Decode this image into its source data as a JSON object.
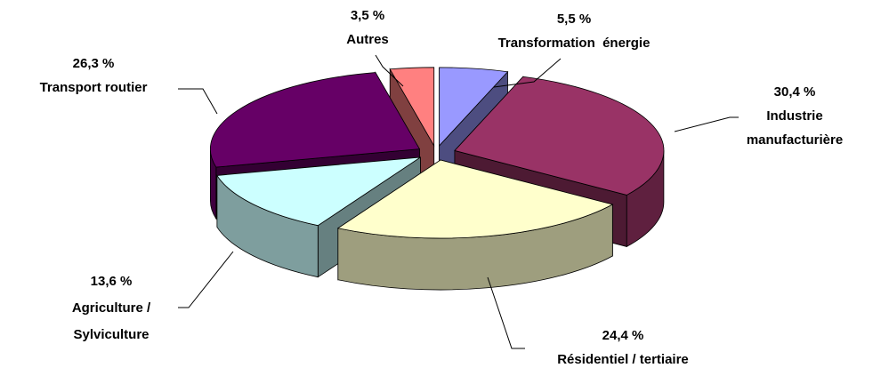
{
  "chart_data": {
    "type": "pie3d",
    "categories": [
      "Transformation  énergie",
      "Industrie manufacturière",
      "Résidentiel / tertiaire",
      "Agriculture / Sylviculture",
      "Transport routier",
      "Autres"
    ],
    "values": [
      5.5,
      30.4,
      24.4,
      13.6,
      26.3,
      3.5
    ],
    "value_labels": [
      "5,5 %",
      "30,4 %",
      "24,4 %",
      "13,6 %",
      "26,3 %",
      "3,5 %"
    ],
    "colors": [
      "#9999ff",
      "#993366",
      "#ffffcc",
      "#ccffff",
      "#660066",
      "#ff8080"
    ]
  }
}
